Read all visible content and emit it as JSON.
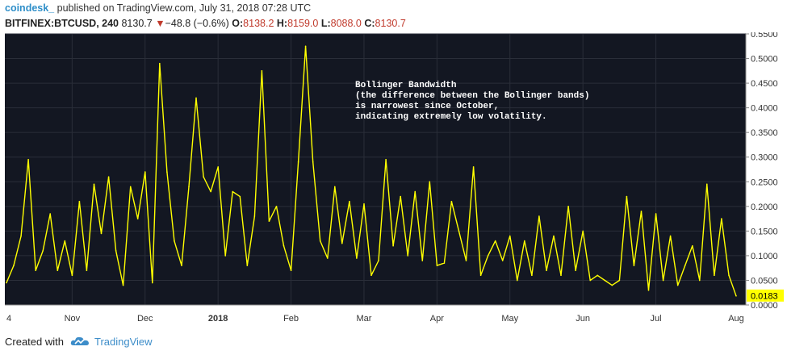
{
  "header": {
    "brand": "coindesk_",
    "published": "published on TradingView.com, July 31, 2018 07:28 UTC",
    "symbol": "BITFINEX:BTCUSD, 240",
    "last_price": "8130.7",
    "change_arrow": "▼",
    "change": "−48.8 (−0.6%)",
    "o_label": "O:",
    "o_value": "8138.2",
    "h_label": "H:",
    "h_value": "8159.0",
    "l_label": "L:",
    "l_value": "8088.0",
    "c_label": "C:",
    "c_value": "8130.7"
  },
  "footer": {
    "created_with": "Created with",
    "tradingview": "TradingView"
  },
  "colors": {
    "background": "#131722",
    "line": "#ffff00",
    "axis_text": "#333333",
    "last_value_bg": "#ffff00"
  },
  "chart_data": {
    "type": "line",
    "series": [
      {
        "values_note": "",
        "x": [
          "Oct 4",
          "Oct 7",
          "Oct 10",
          "Oct 13",
          "Oct 16",
          "Oct 19",
          "Oct 22",
          "Oct 25",
          "Oct 28",
          "Oct 31",
          "Nov 3",
          "Nov 6",
          "Nov 9",
          "Nov 12",
          "Nov 15",
          "Nov 18",
          "Nov 21",
          "Nov 24",
          "Nov 27",
          "Nov 30",
          "Dec 3",
          "Dec 6",
          "Dec 9",
          "Dec 12",
          "Dec 15",
          "Dec 18",
          "Dec 21",
          "Dec 24",
          "Dec 27",
          "Dec 30",
          "Jan 2",
          "Jan 5",
          "Jan 8",
          "Jan 11",
          "Jan 14",
          "Jan 17",
          "Jan 20",
          "Jan 23",
          "Jan 26",
          "Jan 29",
          "Feb 1",
          "Feb 4",
          "Feb 7",
          "Feb 10",
          "Feb 13",
          "Feb 16",
          "Feb 19",
          "Feb 22",
          "Feb 25",
          "Feb 28",
          "Mar 3",
          "Mar 6",
          "Mar 9",
          "Mar 12",
          "Mar 15",
          "Mar 18",
          "Mar 21",
          "Mar 24",
          "Mar 27",
          "Mar 30",
          "Apr 2",
          "Apr 5",
          "Apr 8",
          "Apr 11",
          "Apr 14",
          "Apr 17",
          "Apr 20",
          "Apr 23",
          "Apr 26",
          "Apr 29",
          "May 2",
          "May 5",
          "May 8",
          "May 11",
          "May 14",
          "May 17",
          "May 20",
          "May 23",
          "May 26",
          "May 29",
          "Jun 1",
          "Jun 4",
          "Jun 7",
          "Jun 10",
          "Jun 13",
          "Jun 16",
          "Jun 19",
          "Jun 22",
          "Jun 25",
          "Jun 28",
          "Jul 1",
          "Jul 4",
          "Jul 7",
          "Jul 10",
          "Jul 13",
          "Jul 16",
          "Jul 19",
          "Jul 22",
          "Jul 25",
          "Jul 28",
          "Jul 31"
        ],
        "values": [
          0.045,
          0.08,
          0.14,
          0.295,
          0.07,
          0.11,
          0.185,
          0.07,
          0.13,
          0.06,
          0.21,
          0.07,
          0.245,
          0.145,
          0.26,
          0.11,
          0.04,
          0.24,
          0.175,
          0.27,
          0.045,
          0.49,
          0.27,
          0.13,
          0.08,
          0.24,
          0.42,
          0.26,
          0.23,
          0.28,
          0.1,
          0.23,
          0.22,
          0.08,
          0.18,
          0.475,
          0.17,
          0.2,
          0.12,
          0.07,
          0.29,
          0.525,
          0.29,
          0.13,
          0.095,
          0.24,
          0.125,
          0.21,
          0.095,
          0.205,
          0.06,
          0.09,
          0.295,
          0.12,
          0.22,
          0.1,
          0.23,
          0.09,
          0.25,
          0.08,
          0.085,
          0.21,
          0.15,
          0.09,
          0.28,
          0.06,
          0.1,
          0.13,
          0.09,
          0.14,
          0.05,
          0.13,
          0.06,
          0.18,
          0.07,
          0.14,
          0.06,
          0.2,
          0.07,
          0.15,
          0.05,
          0.06,
          0.05,
          0.04,
          0.05,
          0.22,
          0.08,
          0.19,
          0.03,
          0.185,
          0.05,
          0.14,
          0.04,
          0.08,
          0.12,
          0.05,
          0.245,
          0.06,
          0.175,
          0.06,
          0.0183
        ]
      }
    ],
    "x_tick_labels": [
      "4",
      "Nov",
      "Dec",
      "2018",
      "Feb",
      "Mar",
      "Apr",
      "May",
      "Jun",
      "Jul",
      "Aug"
    ],
    "y_tick_labels": [
      "0.5500",
      "0.5000",
      "0.4500",
      "0.4000",
      "0.3500",
      "0.3000",
      "0.2500",
      "0.2000",
      "0.1500",
      "0.1000",
      "0.0500",
      "0.0000"
    ],
    "ylim": [
      0,
      0.55
    ],
    "last_value_label": "0.0183",
    "annotation": [
      "Bollinger Bandwidth",
      "(the difference between the Bollinger bands)",
      "is narrowest since October,",
      "indicating extremely low volatility."
    ],
    "grid": true
  }
}
